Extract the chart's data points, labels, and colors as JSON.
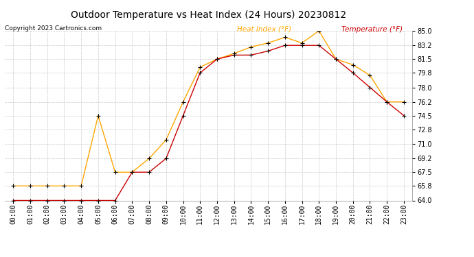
{
  "title": "Outdoor Temperature vs Heat Index (24 Hours) 20230812",
  "copyright": "Copyright 2023 Cartronics.com",
  "legend_heat": "Heat Index (°F)",
  "legend_temp": "Temperature (°F)",
  "hours": [
    "00:00",
    "01:00",
    "02:00",
    "03:00",
    "04:00",
    "05:00",
    "06:00",
    "07:00",
    "08:00",
    "09:00",
    "10:00",
    "11:00",
    "12:00",
    "13:00",
    "14:00",
    "15:00",
    "16:00",
    "17:00",
    "18:00",
    "19:00",
    "20:00",
    "21:00",
    "22:00",
    "23:00"
  ],
  "heat_index": [
    65.8,
    65.8,
    65.8,
    65.8,
    65.8,
    74.5,
    67.5,
    67.5,
    69.2,
    71.5,
    76.2,
    80.5,
    81.5,
    82.2,
    83.0,
    83.5,
    84.2,
    83.5,
    85.0,
    81.5,
    80.8,
    79.5,
    76.2,
    76.2
  ],
  "temperature": [
    64.0,
    64.0,
    64.0,
    64.0,
    64.0,
    64.0,
    64.0,
    67.5,
    67.5,
    69.2,
    74.5,
    79.8,
    81.5,
    82.0,
    82.0,
    82.5,
    83.2,
    83.2,
    83.2,
    81.5,
    79.8,
    78.0,
    76.2,
    74.5
  ],
  "ylim_min": 64.0,
  "ylim_max": 85.0,
  "yticks": [
    64.0,
    65.8,
    67.5,
    69.2,
    71.0,
    72.8,
    74.5,
    76.2,
    78.0,
    79.8,
    81.5,
    83.2,
    85.0
  ],
  "heat_color": "#FFA500",
  "temp_color": "#CC0000",
  "marker_color": "#000000",
  "bg_color": "#FFFFFF",
  "grid_color": "#BBBBBB",
  "title_fontsize": 10,
  "axis_fontsize": 7,
  "copyright_fontsize": 6.5,
  "legend_fontsize": 7.5
}
